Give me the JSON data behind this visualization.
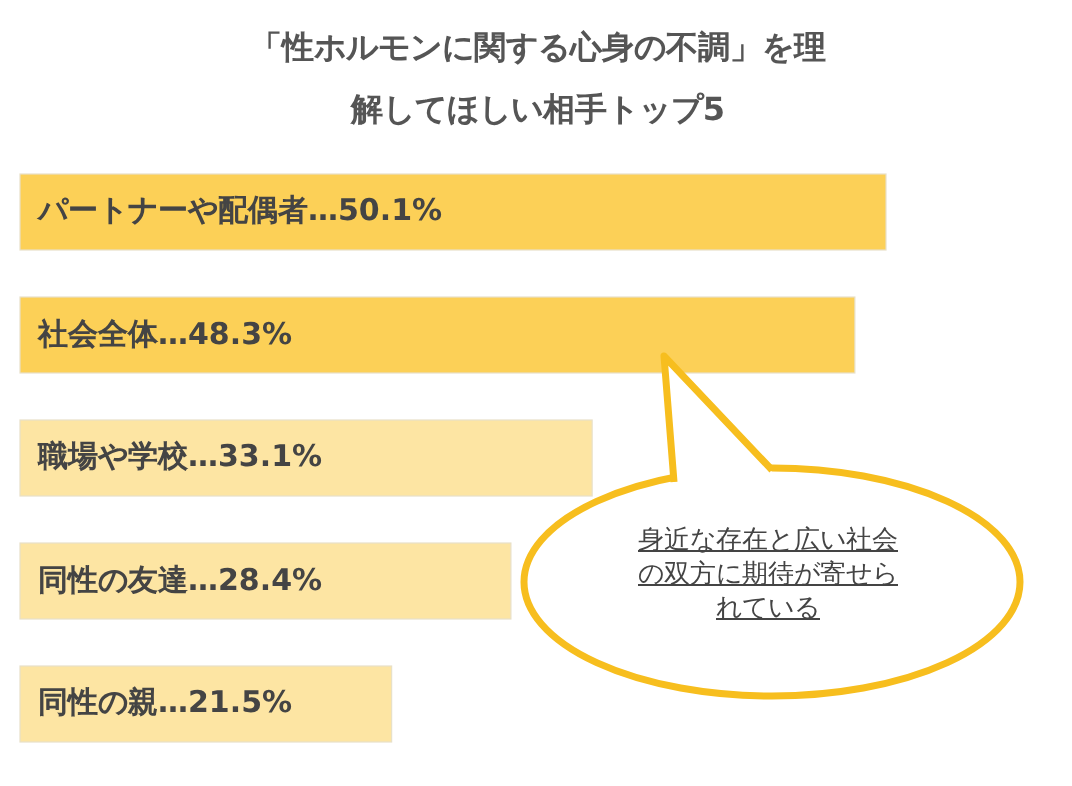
{
  "chart_data": {
    "type": "bar",
    "orientation": "horizontal",
    "title": "「性ホルモンに関する心身の不調」を理解してほしい相手トップ5",
    "categories": [
      "パートナーや配偶者",
      "社会全体",
      "職場や学校",
      "同性の友達",
      "同性の親"
    ],
    "values": [
      50.1,
      48.3,
      33.1,
      28.4,
      21.5
    ],
    "value_labels": [
      "…50.1%",
      "…48.3%",
      "…33.1%",
      "…28.4%",
      "…21.5%"
    ],
    "colors": [
      "#fcd057",
      "#fcd057",
      "#fde5a3",
      "#fde5a3",
      "#fde5a3"
    ],
    "annotations": [
      "身近な存在と広い社会の双方に期待が寄せられている"
    ]
  }
}
